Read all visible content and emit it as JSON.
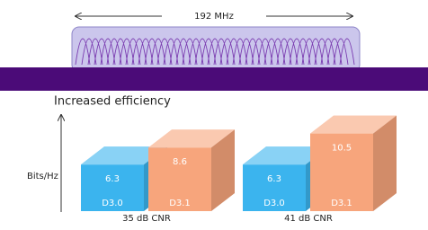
{
  "chart_data": {
    "type": "bar3d",
    "bandwidth_label": "192 MHz",
    "title": "Increased efficiency",
    "y_label": "Bits/Hz",
    "categories": [
      "35 dB CNR",
      "41 dB CNR"
    ],
    "series": [
      {
        "name": "D3.0",
        "color": "#3bb4ee",
        "values": [
          6.3,
          6.3
        ]
      },
      {
        "name": "D3.1",
        "color": "#f7a57c",
        "values": [
          8.6,
          10.5
        ]
      }
    ],
    "ylim": [
      0,
      13
    ]
  }
}
